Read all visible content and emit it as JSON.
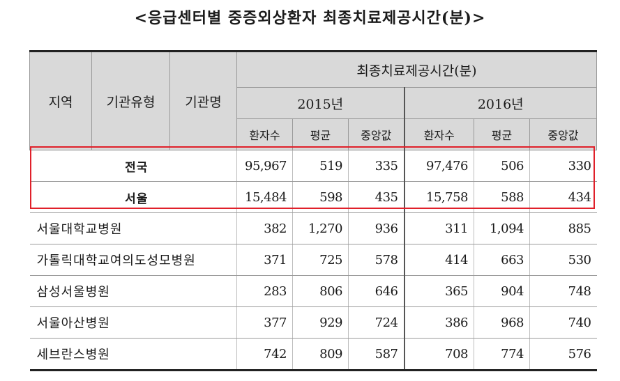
{
  "title": "<응급센터별 중증외상환자 최종치료제공시간(분)>",
  "headers": {
    "region": "지역",
    "institution_type": "기관유형",
    "institution_name": "기관명",
    "group": "최종치료제공시간(분)",
    "year_2015": "2015년",
    "year_2016": "2016년",
    "patients": "환자수",
    "average": "평균",
    "median": "중앙값"
  },
  "summary_rows": [
    {
      "label": "전국",
      "p2015": "95,967",
      "a2015": "519",
      "m2015": "335",
      "p2016": "97,476",
      "a2016": "506",
      "m2016": "330"
    },
    {
      "label": "서울",
      "p2015": "15,484",
      "a2015": "598",
      "m2015": "435",
      "p2016": "15,758",
      "a2016": "588",
      "m2016": "434"
    }
  ],
  "rows": [
    {
      "name": "서울대학교병원",
      "p2015": "382",
      "a2015": "1,270",
      "m2015": "936",
      "p2016": "311",
      "a2016": "1,094",
      "m2016": "885"
    },
    {
      "name": "가톨릭대학교여의도성모병원",
      "p2015": "371",
      "a2015": "725",
      "m2015": "578",
      "p2016": "414",
      "a2016": "663",
      "m2016": "530"
    },
    {
      "name": "삼성서울병원",
      "p2015": "283",
      "a2015": "806",
      "m2015": "646",
      "p2016": "365",
      "a2016": "904",
      "m2016": "748"
    },
    {
      "name": "서울아산병원",
      "p2015": "377",
      "a2015": "929",
      "m2015": "724",
      "p2016": "386",
      "a2016": "968",
      "m2016": "740"
    },
    {
      "name": "세브란스병원",
      "p2015": "742",
      "a2015": "809",
      "m2015": "587",
      "p2016": "708",
      "a2016": "774",
      "m2016": "576"
    }
  ],
  "colors": {
    "highlight": "#e0202a",
    "header_bg": "#d9d9d9"
  }
}
